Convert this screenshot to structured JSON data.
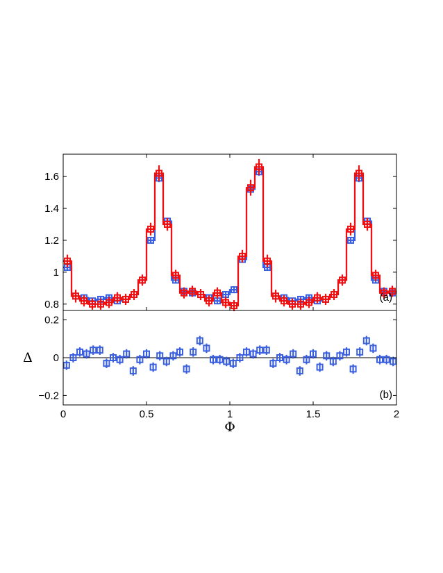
{
  "chart_data": [
    {
      "id": "a",
      "type": "line",
      "panel_label": "(a)",
      "xlim": [
        0,
        2
      ],
      "ylim": [
        0.76,
        1.74
      ],
      "y_ticks": [
        0.8,
        1,
        1.2,
        1.4,
        1.6
      ],
      "y_tick_labels": [
        "0.8",
        "1",
        "1.2",
        "1.4",
        "1.6"
      ],
      "x_ticks": [
        0,
        0.5,
        1,
        1.5,
        2
      ],
      "grid": false,
      "colors": {
        "blue": "#3a5fe0",
        "red": "#ee1111"
      },
      "bins": 40,
      "series": [
        {
          "style": "step-line-with-square-markers-and-errorbars",
          "color": "#3a5fe0",
          "values": [
            1.03,
            0.85,
            0.84,
            0.82,
            0.83,
            0.84,
            0.82,
            0.83,
            0.86,
            0.95,
            1.2,
            1.59,
            1.32,
            0.95,
            0.88,
            0.87,
            0.86,
            0.84,
            0.82,
            0.86,
            0.89,
            1.08,
            1.52,
            1.63,
            1.03,
            0.85,
            0.84,
            0.82,
            0.83,
            0.84,
            0.82,
            0.83,
            0.86,
            0.95,
            1.2,
            1.59,
            1.32,
            0.95,
            0.88,
            0.87
          ],
          "err": [
            0.015,
            0.015,
            0.015,
            0.015,
            0.015,
            0.015,
            0.015,
            0.015,
            0.015,
            0.015,
            0.02,
            0.025,
            0.02,
            0.015,
            0.015,
            0.015,
            0.015,
            0.015,
            0.015,
            0.015,
            0.015,
            0.015,
            0.025,
            0.025,
            0.015,
            0.015,
            0.015,
            0.015,
            0.015,
            0.015,
            0.015,
            0.015,
            0.015,
            0.015,
            0.02,
            0.025,
            0.02,
            0.015,
            0.015,
            0.015
          ]
        },
        {
          "style": "step-line-with-square-markers-and-errorbars",
          "color": "#ee1111",
          "values": [
            1.07,
            0.85,
            0.82,
            0.8,
            0.8,
            0.81,
            0.84,
            0.83,
            0.86,
            0.95,
            1.27,
            1.62,
            1.3,
            0.98,
            0.87,
            0.88,
            0.86,
            0.82,
            0.87,
            0.81,
            0.79,
            1.1,
            1.53,
            1.66,
            1.07,
            0.85,
            0.82,
            0.8,
            0.8,
            0.81,
            0.84,
            0.83,
            0.86,
            0.95,
            1.27,
            1.62,
            1.3,
            0.98,
            0.87,
            0.88
          ],
          "err": [
            0.04,
            0.04,
            0.035,
            0.035,
            0.035,
            0.035,
            0.035,
            0.035,
            0.035,
            0.035,
            0.04,
            0.05,
            0.04,
            0.035,
            0.035,
            0.035,
            0.035,
            0.035,
            0.035,
            0.035,
            0.035,
            0.04,
            0.05,
            0.05,
            0.04,
            0.04,
            0.035,
            0.035,
            0.035,
            0.035,
            0.035,
            0.035,
            0.035,
            0.035,
            0.04,
            0.05,
            0.04,
            0.035,
            0.035,
            0.035
          ]
        }
      ]
    },
    {
      "id": "b",
      "type": "scatter",
      "panel_label": "(b)",
      "xlabel": "Φ",
      "ylabel": "Δ",
      "xlim": [
        0,
        2
      ],
      "ylim": [
        -0.25,
        0.25
      ],
      "x_ticks": [
        0,
        0.5,
        1,
        1.5,
        2
      ],
      "x_tick_labels": [
        "0",
        "0.5",
        "1",
        "1.5",
        "2"
      ],
      "y_ticks": [
        -0.2,
        0,
        0.2
      ],
      "y_tick_labels": [
        "−0.2",
        "0",
        "0.2"
      ],
      "zero_line": true,
      "grid": false,
      "series": [
        {
          "style": "open-square-markers-with-errorbars",
          "color": "#3a5fe0",
          "values": [
            -0.04,
            0.0,
            0.03,
            0.02,
            0.04,
            0.04,
            -0.03,
            0.0,
            -0.01,
            0.02,
            -0.07,
            -0.01,
            0.02,
            -0.05,
            0.01,
            -0.02,
            0.01,
            0.03,
            -0.06,
            0.03,
            0.09,
            0.05,
            -0.01,
            -0.01,
            -0.02,
            -0.03,
            0.0,
            0.03,
            0.02,
            0.04,
            0.04,
            -0.03,
            0.0,
            -0.01,
            0.02,
            -0.07,
            -0.01,
            0.02,
            -0.05,
            0.01,
            -0.02,
            0.01,
            0.03,
            -0.06,
            0.03,
            0.09,
            0.05,
            -0.01,
            -0.01,
            -0.02
          ],
          "err": 0.025
        }
      ]
    }
  ]
}
